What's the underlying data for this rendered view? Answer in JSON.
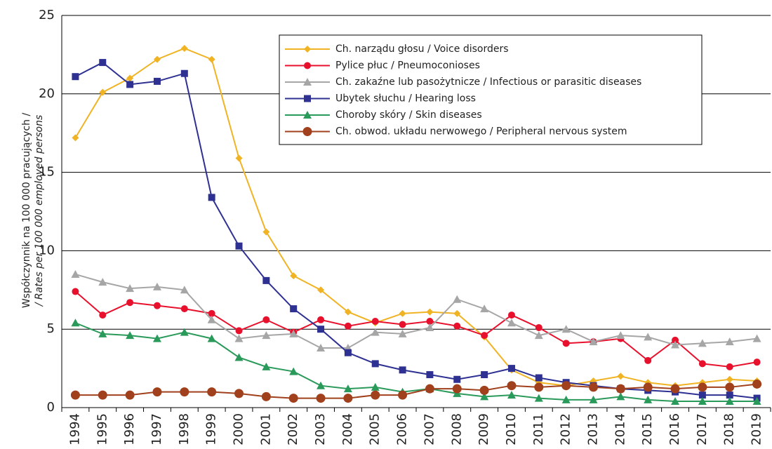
{
  "chart_data": {
    "type": "line",
    "ylabel": [
      "Współczynnik na 100 000 pracujących /",
      "/ Rates per 100 000 employed persons"
    ],
    "categories": [
      "1994",
      "1995",
      "1996",
      "1997",
      "1998",
      "1999",
      "2000",
      "2001",
      "2002",
      "2003",
      "2004",
      "2005",
      "2006",
      "2007",
      "2008",
      "2009",
      "2010",
      "2011",
      "2012",
      "2013",
      "2014",
      "2015",
      "2016",
      "2017",
      "2018",
      "2019"
    ],
    "ylim": [
      0,
      25
    ],
    "yticks": [
      0,
      5,
      10,
      15,
      20,
      25
    ],
    "grid": true,
    "series": [
      {
        "name": "Ch. narządu głosu / Voice disorders",
        "color": "#f0b323",
        "marker": "diamond",
        "values": [
          17.2,
          20.1,
          21.0,
          22.2,
          22.9,
          22.2,
          15.9,
          11.2,
          8.4,
          7.5,
          6.1,
          5.4,
          6.0,
          6.1,
          6.0,
          4.5,
          2.4,
          1.6,
          1.4,
          1.7,
          2.0,
          1.6,
          1.4,
          1.6,
          1.8,
          1.7
        ]
      },
      {
        "name": "Pylice płuc / Pneumoconioses",
        "color": "#e8112d",
        "marker": "circle",
        "values": [
          7.4,
          5.9,
          6.7,
          6.5,
          6.3,
          6.0,
          4.9,
          5.6,
          4.8,
          5.6,
          5.2,
          5.5,
          5.3,
          5.5,
          5.2,
          4.6,
          5.9,
          5.1,
          4.1,
          4.2,
          4.4,
          3.0,
          4.3,
          2.8,
          2.6,
          2.9
        ]
      },
      {
        "name": "Ch. zakaźne lub pasożytnicze / Infectious or parasitic diseases",
        "color": "#a6a6a6",
        "marker": "triangle",
        "values": [
          8.5,
          8.0,
          7.6,
          7.7,
          7.5,
          5.6,
          4.4,
          4.6,
          4.7,
          3.8,
          3.8,
          4.8,
          4.7,
          5.1,
          6.9,
          6.3,
          5.4,
          4.6,
          5.0,
          4.2,
          4.6,
          4.5,
          4.0,
          4.1,
          4.2,
          4.4
        ]
      },
      {
        "name": "Ubytek słuchu / Hearing loss",
        "color": "#2e3192",
        "marker": "square",
        "values": [
          21.1,
          22.0,
          20.6,
          20.8,
          21.3,
          13.4,
          10.3,
          8.1,
          6.3,
          5.0,
          3.5,
          2.8,
          2.4,
          2.1,
          1.8,
          2.1,
          2.5,
          1.9,
          1.6,
          1.4,
          1.2,
          1.1,
          1.0,
          0.8,
          0.8,
          0.6
        ]
      },
      {
        "name": "Choroby skóry / Skin diseases",
        "color": "#2a9a5a",
        "marker": "triangle",
        "values": [
          5.4,
          4.7,
          4.6,
          4.4,
          4.8,
          4.4,
          3.2,
          2.6,
          2.3,
          1.4,
          1.2,
          1.3,
          1.0,
          1.2,
          0.9,
          0.7,
          0.8,
          0.6,
          0.5,
          0.5,
          0.7,
          0.5,
          0.4,
          0.4,
          0.4,
          0.4
        ]
      },
      {
        "name": "Ch. obwod. układu nerwowego / Peripheral nervous system",
        "color": "#a0401c",
        "marker": "bigcircle",
        "values": [
          0.8,
          0.8,
          0.8,
          1.0,
          1.0,
          1.0,
          0.9,
          0.7,
          0.6,
          0.6,
          0.6,
          0.8,
          0.8,
          1.2,
          1.2,
          1.1,
          1.4,
          1.3,
          1.4,
          1.3,
          1.2,
          1.3,
          1.2,
          1.3,
          1.3,
          1.5
        ]
      }
    ]
  }
}
